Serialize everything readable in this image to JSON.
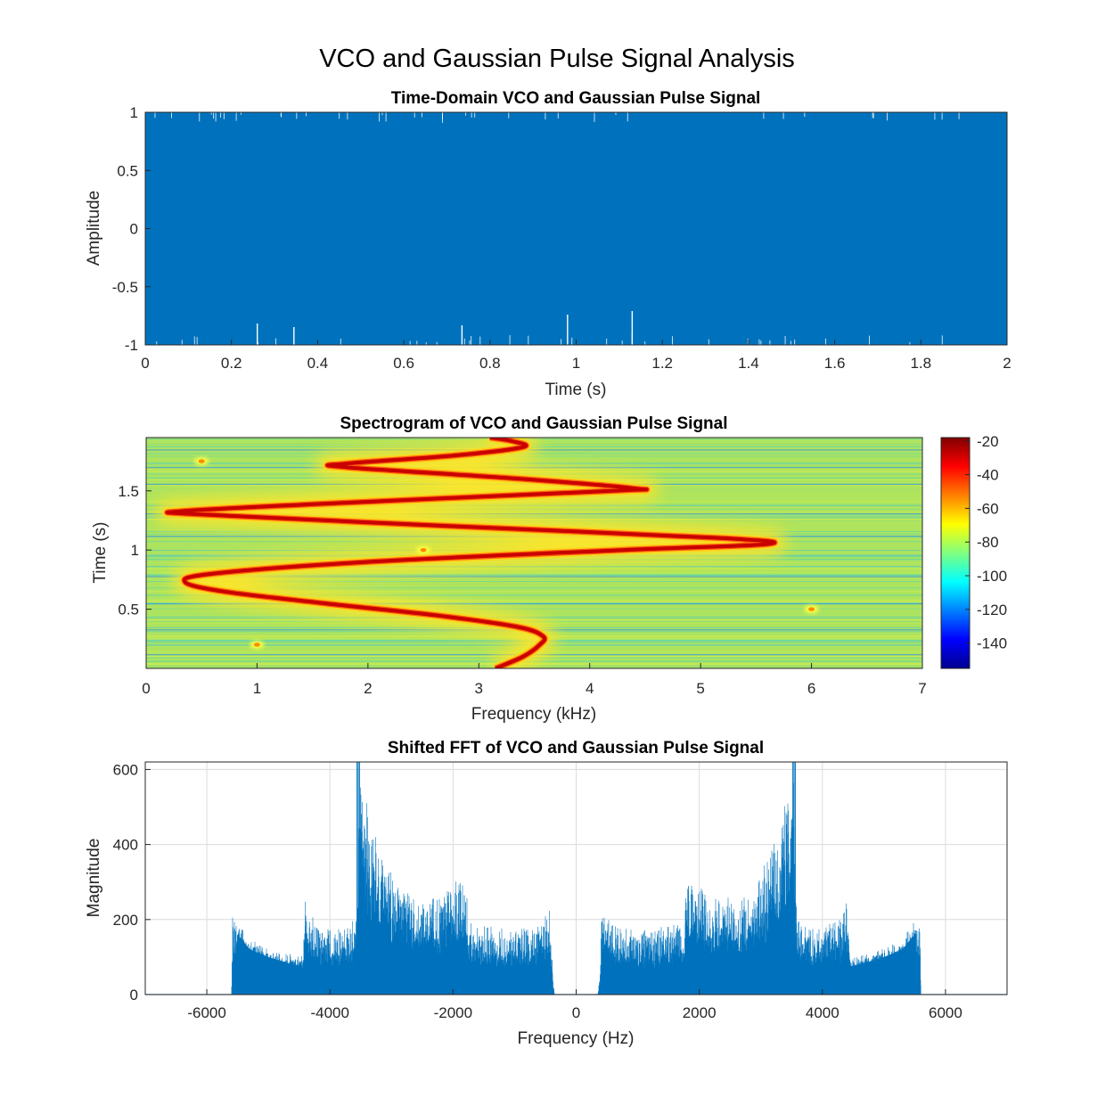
{
  "figure": {
    "title": "VCO and Gaussian Pulse Signal Analysis"
  },
  "chart_data": [
    {
      "type": "line",
      "title": "Time-Domain VCO and Gaussian Pulse Signal",
      "xlabel": "Time (s)",
      "ylabel": "Amplitude",
      "xlim": [
        0,
        2
      ],
      "ylim": [
        -1,
        1
      ],
      "xticks": [
        "0",
        "0.2",
        "0.4",
        "0.6",
        "0.8",
        "1",
        "1.2",
        "1.4",
        "1.6",
        "1.8",
        "2"
      ],
      "yticks": [
        "-1",
        "-0.5",
        "0",
        "0.5",
        "1"
      ],
      "grid": false,
      "color": "#0072bd",
      "envelope": {
        "upper": 1,
        "lower": -1
      }
    },
    {
      "type": "heatmap",
      "title": "Spectrogram of VCO and Gaussian Pulse Signal",
      "xlabel": "Frequency (kHz)",
      "ylabel": "Time (s)",
      "xlim": [
        0,
        7
      ],
      "ylim": [
        0,
        1.95
      ],
      "xticks": [
        "0",
        "1",
        "2",
        "3",
        "4",
        "5",
        "6",
        "7"
      ],
      "yticks": [
        "0.5",
        "1",
        "1.5"
      ],
      "colorbar": {
        "ticks": [
          "-20",
          "-40",
          "-60",
          "-80",
          "-100",
          "-120",
          "-140"
        ],
        "range": [
          -155,
          -18
        ],
        "colormap": "jet"
      },
      "ridge_points": [
        {
          "t": 0.0,
          "f": 3.15
        },
        {
          "t": 0.1,
          "f": 3.4
        },
        {
          "t": 0.2,
          "f": 3.55
        },
        {
          "t": 0.27,
          "f": 3.58
        },
        {
          "t": 0.35,
          "f": 3.35
        },
        {
          "t": 0.45,
          "f": 2.6
        },
        {
          "t": 0.55,
          "f": 1.6
        },
        {
          "t": 0.65,
          "f": 0.7
        },
        {
          "t": 0.73,
          "f": 0.35
        },
        {
          "t": 0.8,
          "f": 0.6
        },
        {
          "t": 0.9,
          "f": 2.0
        },
        {
          "t": 1.0,
          "f": 4.3
        },
        {
          "t": 1.05,
          "f": 5.6
        },
        {
          "t": 1.1,
          "f": 5.2
        },
        {
          "t": 1.2,
          "f": 2.8
        },
        {
          "t": 1.3,
          "f": 0.5
        },
        {
          "t": 1.33,
          "f": 0.35
        },
        {
          "t": 1.4,
          "f": 1.8
        },
        {
          "t": 1.5,
          "f": 4.2
        },
        {
          "t": 1.52,
          "f": 4.4
        },
        {
          "t": 1.6,
          "f": 3.4
        },
        {
          "t": 1.7,
          "f": 1.8
        },
        {
          "t": 1.73,
          "f": 1.8
        },
        {
          "t": 1.8,
          "f": 2.8
        },
        {
          "t": 1.87,
          "f": 3.4
        },
        {
          "t": 1.92,
          "f": 3.3
        },
        {
          "t": 1.95,
          "f": 3.1
        }
      ],
      "pulses": [
        {
          "t": 0.2,
          "f": 1.0
        },
        {
          "t": 0.5,
          "f": 6.0
        },
        {
          "t": 1.0,
          "f": 2.5
        },
        {
          "t": 1.75,
          "f": 0.5
        }
      ]
    },
    {
      "type": "line",
      "title": "Shifted FFT of VCO and Gaussian Pulse Signal",
      "xlabel": "Frequency (Hz)",
      "ylabel": "Magnitude",
      "xlim": [
        -7000,
        7000
      ],
      "ylim": [
        0,
        620
      ],
      "xticks": [
        "-6000",
        "-4000",
        "-2000",
        "0",
        "2000",
        "4000",
        "6000"
      ],
      "yticks": [
        "0",
        "200",
        "400",
        "600"
      ],
      "grid": true,
      "color": "#0072bd",
      "spectrum_envelope": [
        {
          "f": 350,
          "upper": 0,
          "lower": 0
        },
        {
          "f": 380,
          "upper": 40,
          "lower": 0
        },
        {
          "f": 420,
          "upper": 210,
          "lower": 30
        },
        {
          "f": 500,
          "upper": 190,
          "lower": 25
        },
        {
          "f": 700,
          "upper": 165,
          "lower": 20
        },
        {
          "f": 1000,
          "upper": 160,
          "lower": 20
        },
        {
          "f": 1400,
          "upper": 165,
          "lower": 20
        },
        {
          "f": 1750,
          "upper": 175,
          "lower": 25
        },
        {
          "f": 1800,
          "upper": 300,
          "lower": 30
        },
        {
          "f": 2200,
          "upper": 235,
          "lower": 30
        },
        {
          "f": 2600,
          "upper": 235,
          "lower": 30
        },
        {
          "f": 2900,
          "upper": 260,
          "lower": 30
        },
        {
          "f": 3100,
          "upper": 330,
          "lower": 35
        },
        {
          "f": 3300,
          "upper": 400,
          "lower": 40
        },
        {
          "f": 3450,
          "upper": 500,
          "lower": 45
        },
        {
          "f": 3520,
          "upper": 560,
          "lower": 50
        },
        {
          "f": 3580,
          "upper": 200,
          "lower": 40
        },
        {
          "f": 3700,
          "upper": 165,
          "lower": 30
        },
        {
          "f": 4000,
          "upper": 160,
          "lower": 30
        },
        {
          "f": 4300,
          "upper": 190,
          "lower": 30
        },
        {
          "f": 4400,
          "upper": 230,
          "lower": 40
        },
        {
          "f": 4450,
          "upper": 95,
          "lower": 75
        },
        {
          "f": 4700,
          "upper": 100,
          "lower": 85
        },
        {
          "f": 5000,
          "upper": 115,
          "lower": 100
        },
        {
          "f": 5300,
          "upper": 135,
          "lower": 120
        },
        {
          "f": 5500,
          "upper": 180,
          "lower": 160
        },
        {
          "f": 5580,
          "upper": 200,
          "lower": 0
        },
        {
          "f": 5600,
          "upper": 0,
          "lower": 0
        }
      ]
    }
  ]
}
